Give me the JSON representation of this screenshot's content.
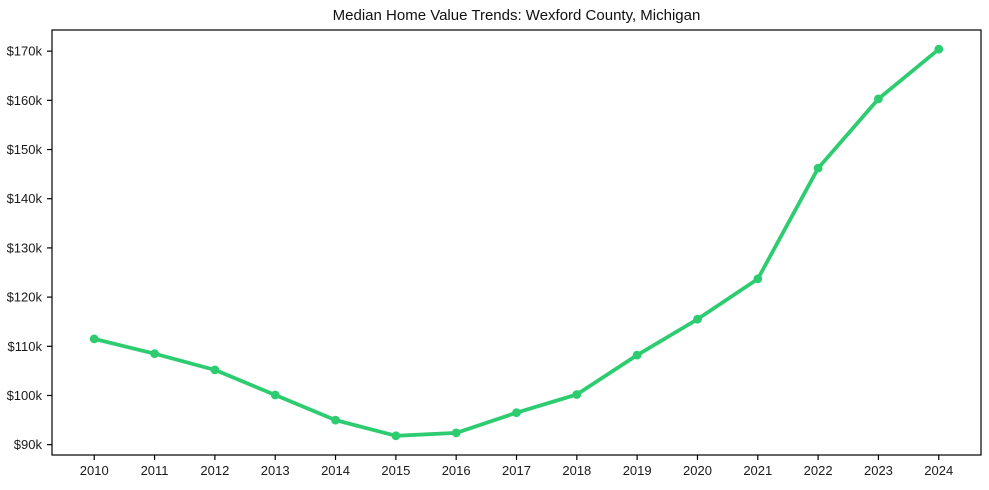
{
  "window": {
    "background_color": "#ffffff"
  },
  "chart_data": {
    "type": "line",
    "title": "Median Home Value Trends: Wexford County, Michigan",
    "xlabel": "",
    "ylabel": "",
    "x": [
      2010,
      2011,
      2012,
      2013,
      2014,
      2015,
      2016,
      2017,
      2018,
      2019,
      2020,
      2021,
      2022,
      2023,
      2024
    ],
    "x_tick_labels": [
      "2010",
      "2011",
      "2012",
      "2013",
      "2014",
      "2015",
      "2016",
      "2017",
      "2018",
      "2019",
      "2020",
      "2021",
      "2022",
      "2023",
      "2024"
    ],
    "series": [
      {
        "name": "Median Home Value",
        "values": [
          111.5,
          108.5,
          105.2,
          100.1,
          95.0,
          91.8,
          92.4,
          96.5,
          100.2,
          108.2,
          115.5,
          123.7,
          146.2,
          160.3,
          170.4
        ]
      }
    ],
    "values_unit": "thousand USD",
    "y_ticks": [
      90,
      100,
      110,
      120,
      130,
      140,
      150,
      160,
      170
    ],
    "y_tick_labels": [
      "$90k",
      "$100k",
      "$110k",
      "$120k",
      "$130k",
      "$140k",
      "$150k",
      "$160k",
      "$170k"
    ],
    "xlim": [
      2009.3,
      2024.7
    ],
    "ylim": [
      87.9,
      174.3
    ],
    "grid": false,
    "legend_position": "none",
    "line_color": "#2ecc71",
    "marker": "circle",
    "marker_color": "#2ecc71",
    "frame_color": "#000000",
    "tick_label_color": "#1a1a1a"
  }
}
